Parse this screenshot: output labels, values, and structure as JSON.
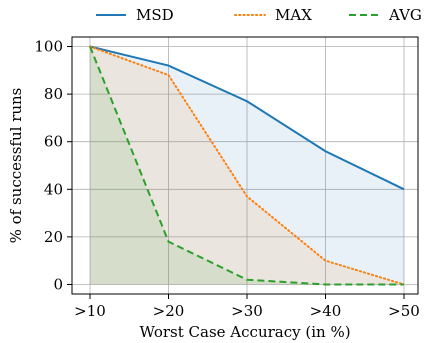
{
  "chart_data": {
    "type": "line",
    "categories": [
      ">10",
      ">20",
      ">30",
      ">40",
      ">50"
    ],
    "series": [
      {
        "name": "MSD",
        "values": [
          100,
          92,
          77,
          56,
          40
        ],
        "color": "#1f77b4",
        "dash": "solid"
      },
      {
        "name": "MAX",
        "values": [
          100,
          88,
          37,
          10,
          0
        ],
        "color": "#ff7f0e",
        "dash": "dotted"
      },
      {
        "name": "AVG",
        "values": [
          100,
          18,
          2,
          0,
          0
        ],
        "color": "#2ca02c",
        "dash": "dashed"
      }
    ],
    "fill_between_series": true,
    "xlabel": "Worst Case Accuracy (in %)",
    "ylabel": "% of successful runs",
    "ylim": [
      -4,
      104
    ],
    "yticks": [
      0,
      20,
      40,
      60,
      80,
      100
    ],
    "grid": true,
    "legend_position": "top"
  }
}
